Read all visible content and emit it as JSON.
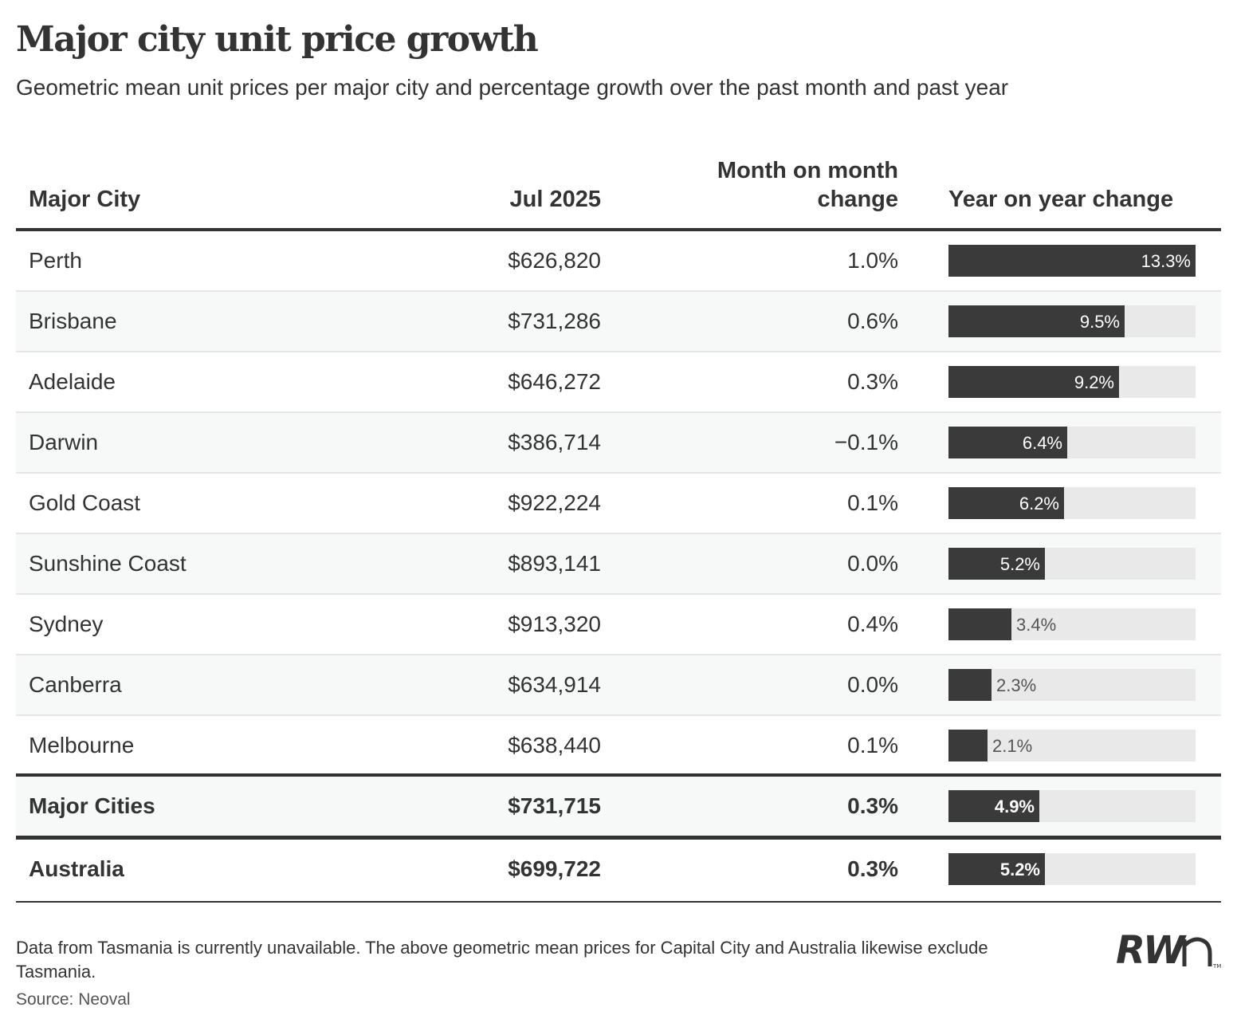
{
  "header": {
    "title": "Major city unit price growth",
    "subtitle": "Geometric mean unit prices per major city and percentage growth over the past month and past year"
  },
  "columns": {
    "city": "Major City",
    "price": "Jul 2025",
    "mom": "Month on month\nchange",
    "yoy": "Year on year change"
  },
  "chart_data": {
    "type": "table",
    "title": "Major city unit price growth",
    "subtitle": "Geometric mean unit prices per major city and percentage growth over the past month and past year",
    "columns": [
      "Major City",
      "Jul 2025",
      "Month on month change",
      "Year on year change"
    ],
    "bar_max": 13.3,
    "rows": [
      {
        "city": "Perth",
        "price": "$626,820",
        "mom": "1.0%",
        "yoy_label": "13.3%",
        "yoy": 13.3
      },
      {
        "city": "Brisbane",
        "price": "$731,286",
        "mom": "0.6%",
        "yoy_label": "9.5%",
        "yoy": 9.5
      },
      {
        "city": "Adelaide",
        "price": "$646,272",
        "mom": "0.3%",
        "yoy_label": "9.2%",
        "yoy": 9.2
      },
      {
        "city": "Darwin",
        "price": "$386,714",
        "mom": "−0.1%",
        "yoy_label": "6.4%",
        "yoy": 6.4
      },
      {
        "city": "Gold Coast",
        "price": "$922,224",
        "mom": "0.1%",
        "yoy_label": "6.2%",
        "yoy": 6.2
      },
      {
        "city": "Sunshine Coast",
        "price": "$893,141",
        "mom": "0.0%",
        "yoy_label": "5.2%",
        "yoy": 5.2
      },
      {
        "city": "Sydney",
        "price": "$913,320",
        "mom": "0.4%",
        "yoy_label": "3.4%",
        "yoy": 3.4
      },
      {
        "city": "Canberra",
        "price": "$634,914",
        "mom": "0.0%",
        "yoy_label": "2.3%",
        "yoy": 2.3
      },
      {
        "city": "Melbourne",
        "price": "$638,440",
        "mom": "0.1%",
        "yoy_label": "2.1%",
        "yoy": 2.1
      }
    ],
    "summary": [
      {
        "city": "Major Cities",
        "price": "$731,715",
        "mom": "0.3%",
        "yoy_label": "4.9%",
        "yoy": 4.9
      },
      {
        "city": "Australia",
        "price": "$699,722",
        "mom": "0.3%",
        "yoy_label": "5.2%",
        "yoy": 5.2
      }
    ]
  },
  "footer": {
    "note": "Data from Tasmania is currently unavailable. The above geometric mean prices for Capital City and Australia likewise exclude Tasmania.",
    "source": "Source: Neoval",
    "logo_text": "RWn"
  },
  "colors": {
    "bar": "#3a3a3a",
    "track": "#e9e9e9",
    "alt_row": "#f7f8f8",
    "text": "#333333"
  }
}
